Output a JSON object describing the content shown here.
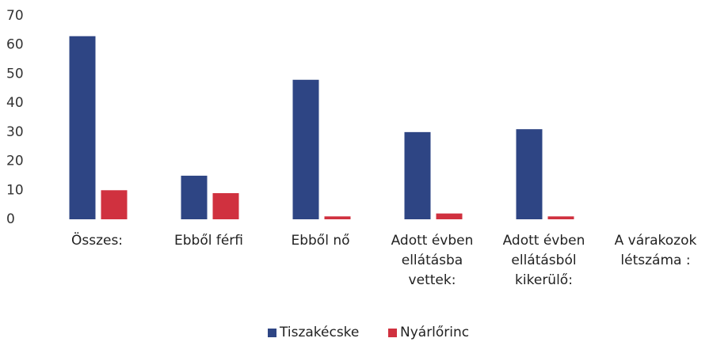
{
  "chart_data": {
    "type": "bar",
    "categories": [
      "Összes:",
      "Ebből férfi",
      "Ebből nő",
      "Adott évben\nellátásba\nvettek:",
      "Adott évben\nellátásból\nkikerülő:",
      "A várakozok\nlétszáma :"
    ],
    "series": [
      {
        "name": "Tiszakécske",
        "color": "#2e4584",
        "values": [
          63,
          15,
          48,
          30,
          31,
          0
        ]
      },
      {
        "name": "Nyárlőrinc",
        "color": "#d0313f",
        "values": [
          10,
          9,
          1,
          2,
          1,
          0
        ]
      }
    ],
    "ylim": [
      0,
      70
    ],
    "yticks": [
      0,
      10,
      20,
      30,
      40,
      50,
      60,
      70
    ],
    "grid": false,
    "legend": "bottom"
  }
}
